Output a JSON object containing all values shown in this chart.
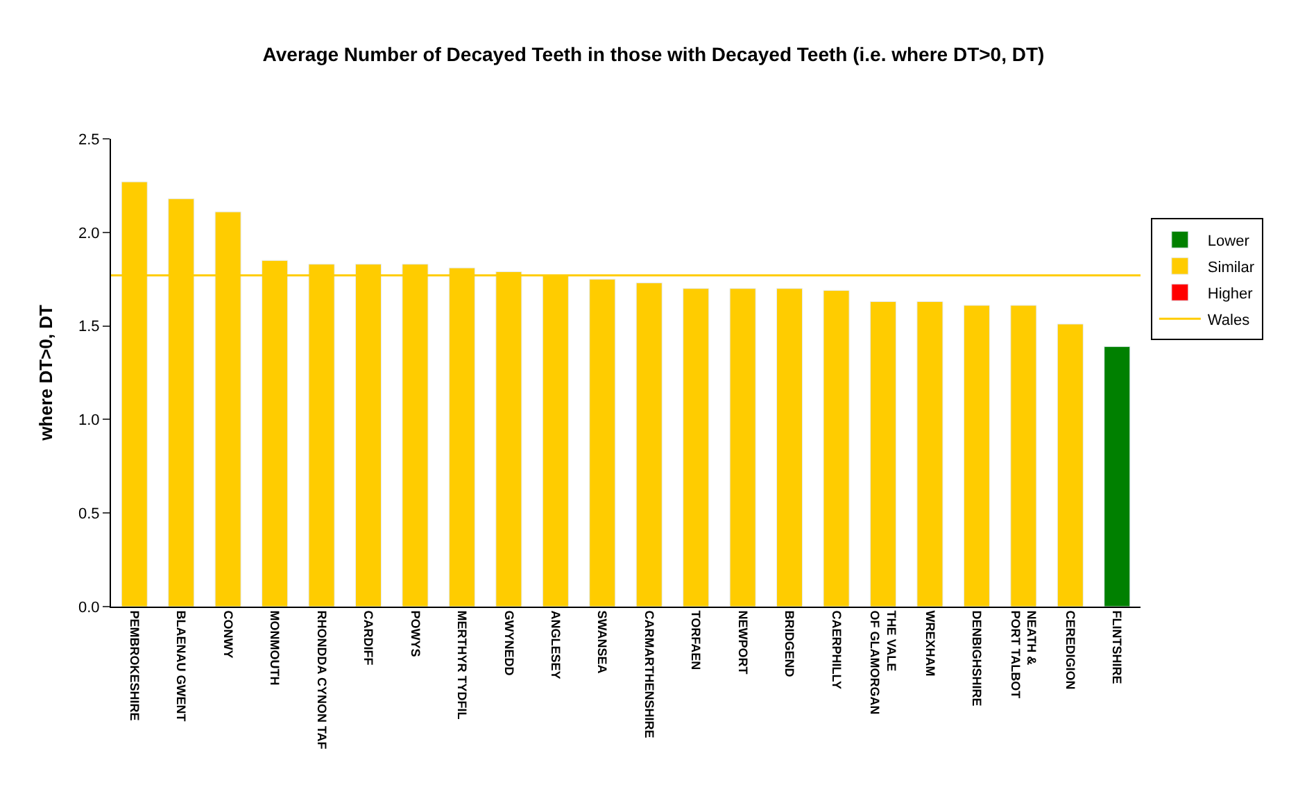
{
  "chart_data": {
    "type": "bar",
    "title": "Average Number of Decayed Teeth in those with Decayed Teeth (i.e. where DT>0, DT)",
    "ylabel": "where DT>0, DT",
    "categories": [
      "PEMBROKESHIRE",
      "BLAENAU GWENT",
      "CONWY",
      "MONMOUTH",
      "RHONDDA CYNON TAF",
      "CARDIFF",
      "POWYS",
      "MERTHYR TYDFIL",
      "GWYNEDD",
      "ANGLESEY",
      "SWANSEA",
      "CARMARTHENSHIRE",
      "TORFAEN",
      "NEWPORT",
      "BRIDGEND",
      "CAERPHILLY",
      "THE VALE OF GLAMORGAN",
      "WREXHAM",
      "DENBIGHSHIRE",
      "NEATH & PORT TALBOT",
      "CEREDIGION",
      "FLINTSHIRE"
    ],
    "series": [
      {
        "name": "Lower",
        "color": "#008000",
        "values": [
          null,
          null,
          null,
          null,
          null,
          null,
          null,
          null,
          null,
          null,
          null,
          null,
          null,
          null,
          null,
          null,
          null,
          null,
          null,
          null,
          null,
          1.39
        ]
      },
      {
        "name": "Similar",
        "color": "#ffcc00",
        "values": [
          2.27,
          2.18,
          2.11,
          1.85,
          1.83,
          1.83,
          1.83,
          1.81,
          1.79,
          1.77,
          1.75,
          1.73,
          1.7,
          1.7,
          1.7,
          1.69,
          1.63,
          1.63,
          1.61,
          1.61,
          1.51,
          null
        ]
      },
      {
        "name": "Higher",
        "color": "#ff0000",
        "values": [
          null,
          null,
          null,
          null,
          null,
          null,
          null,
          null,
          null,
          null,
          null,
          null,
          null,
          null,
          null,
          null,
          null,
          null,
          null,
          null,
          null,
          null
        ]
      }
    ],
    "ref_lines": [
      {
        "axis": "y",
        "value": 1.77,
        "label": "Wales",
        "color": "#ffcc00"
      }
    ],
    "ylim": [
      0,
      2.5
    ],
    "yticks": [
      {
        "value": 0,
        "label": "0.0"
      },
      {
        "value": 0.5,
        "label": "0.5"
      },
      {
        "value": 1,
        "label": "1.0"
      },
      {
        "value": 1.5,
        "label": "1.5"
      },
      {
        "value": 2,
        "label": "2.0"
      },
      {
        "value": 2.5,
        "label": "2.5"
      }
    ],
    "legend": "right"
  }
}
